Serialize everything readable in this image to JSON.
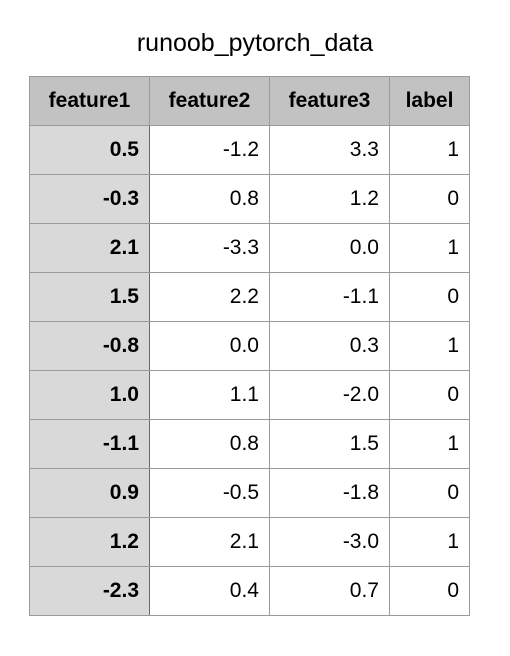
{
  "title": "runoob_pytorch_data",
  "columns": [
    "feature1",
    "feature2",
    "feature3",
    "label"
  ],
  "rows": [
    [
      "0.5",
      "-1.2",
      "3.3",
      "1"
    ],
    [
      "-0.3",
      "0.8",
      "1.2",
      "0"
    ],
    [
      "2.1",
      "-3.3",
      "0.0",
      "1"
    ],
    [
      "1.5",
      "2.2",
      "-1.1",
      "0"
    ],
    [
      "-0.8",
      "0.0",
      "0.3",
      "1"
    ],
    [
      "1.0",
      "1.1",
      "-2.0",
      "0"
    ],
    [
      "-1.1",
      "0.8",
      "1.5",
      "1"
    ],
    [
      "0.9",
      "-0.5",
      "-1.8",
      "0"
    ],
    [
      "1.2",
      "2.1",
      "-3.0",
      "1"
    ],
    [
      "-2.3",
      "0.4",
      "0.7",
      "0"
    ]
  ],
  "colors": {
    "header_bg": "#c2c2c2",
    "index_col_bg": "#d9d9d9",
    "cell_bg": "#ffffff",
    "border": "#9a9a9a"
  }
}
